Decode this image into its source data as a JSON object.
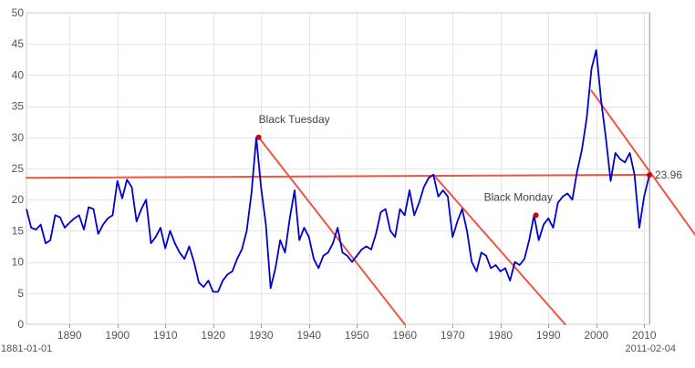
{
  "chart_data": {
    "type": "line",
    "title": "",
    "xlabel": "",
    "ylabel": "",
    "xlim": [
      1881,
      2011.1
    ],
    "ylim": [
      0,
      50
    ],
    "grid": true,
    "x_ticks": [
      1890,
      1900,
      1910,
      1920,
      1930,
      1940,
      1950,
      1960,
      1970,
      1980,
      1990,
      2000,
      2010
    ],
    "y_ticks": [
      0,
      5,
      10,
      15,
      20,
      25,
      30,
      35,
      40,
      45,
      50
    ],
    "range_start_label": "1881-01-01",
    "range_end_label": "2011-02-04",
    "series": [
      {
        "color": "#0000cc",
        "points": [
          [
            1881,
            18.5
          ],
          [
            1882,
            15.5
          ],
          [
            1883,
            15.2
          ],
          [
            1884,
            16
          ],
          [
            1885,
            13
          ],
          [
            1886,
            13.5
          ],
          [
            1887,
            17.5
          ],
          [
            1888,
            17.2
          ],
          [
            1889,
            15.5
          ],
          [
            1890,
            16.3
          ],
          [
            1891,
            17
          ],
          [
            1892,
            17.5
          ],
          [
            1893,
            15.2
          ],
          [
            1894,
            18.8
          ],
          [
            1895,
            18.5
          ],
          [
            1896,
            14.5
          ],
          [
            1897,
            16
          ],
          [
            1898,
            17
          ],
          [
            1899,
            17.5
          ],
          [
            1900,
            23
          ],
          [
            1901,
            20.2
          ],
          [
            1902,
            23.2
          ],
          [
            1903,
            22
          ],
          [
            1904,
            16.5
          ],
          [
            1905,
            18.5
          ],
          [
            1906,
            20
          ],
          [
            1907,
            13
          ],
          [
            1908,
            14
          ],
          [
            1909,
            15.5
          ],
          [
            1910,
            12.2
          ],
          [
            1911,
            15
          ],
          [
            1912,
            13
          ],
          [
            1913,
            11.5
          ],
          [
            1914,
            10.5
          ],
          [
            1915,
            12.5
          ],
          [
            1916,
            10
          ],
          [
            1917,
            6.7
          ],
          [
            1918,
            6
          ],
          [
            1919,
            7
          ],
          [
            1920,
            5.2
          ],
          [
            1921,
            5.2
          ],
          [
            1922,
            7
          ],
          [
            1923,
            8
          ],
          [
            1924,
            8.5
          ],
          [
            1925,
            10.5
          ],
          [
            1926,
            12
          ],
          [
            1927,
            15
          ],
          [
            1928,
            21
          ],
          [
            1929,
            30
          ],
          [
            1930,
            22
          ],
          [
            1931,
            16
          ],
          [
            1932,
            5.8
          ],
          [
            1933,
            9
          ],
          [
            1934,
            13.5
          ],
          [
            1935,
            11.5
          ],
          [
            1936,
            17
          ],
          [
            1937,
            21.5
          ],
          [
            1938,
            13.5
          ],
          [
            1939,
            15.5
          ],
          [
            1940,
            14
          ],
          [
            1941,
            10.5
          ],
          [
            1942,
            9
          ],
          [
            1943,
            11
          ],
          [
            1944,
            11.5
          ],
          [
            1945,
            13
          ],
          [
            1946,
            15.5
          ],
          [
            1947,
            11.5
          ],
          [
            1948,
            11
          ],
          [
            1949,
            10
          ],
          [
            1950,
            11
          ],
          [
            1951,
            12
          ],
          [
            1952,
            12.5
          ],
          [
            1953,
            12
          ],
          [
            1954,
            14.5
          ],
          [
            1955,
            18
          ],
          [
            1956,
            18.5
          ],
          [
            1957,
            15
          ],
          [
            1958,
            14
          ],
          [
            1959,
            18.5
          ],
          [
            1960,
            17.5
          ],
          [
            1961,
            21.5
          ],
          [
            1962,
            17.5
          ],
          [
            1963,
            19.5
          ],
          [
            1964,
            22
          ],
          [
            1965,
            23.5
          ],
          [
            1966,
            24
          ],
          [
            1967,
            20.5
          ],
          [
            1968,
            21.5
          ],
          [
            1969,
            20.5
          ],
          [
            1970,
            14
          ],
          [
            1971,
            16.5
          ],
          [
            1972,
            18.5
          ],
          [
            1973,
            15
          ],
          [
            1974,
            10
          ],
          [
            1975,
            8.5
          ],
          [
            1976,
            11.5
          ],
          [
            1977,
            11
          ],
          [
            1978,
            9
          ],
          [
            1979,
            9.5
          ],
          [
            1980,
            8.5
          ],
          [
            1981,
            9
          ],
          [
            1982,
            7
          ],
          [
            1983,
            10
          ],
          [
            1984,
            9.5
          ],
          [
            1985,
            10.5
          ],
          [
            1986,
            13.5
          ],
          [
            1987,
            17.5
          ],
          [
            1988,
            13.5
          ],
          [
            1989,
            16
          ],
          [
            1990,
            17
          ],
          [
            1991,
            15.5
          ],
          [
            1992,
            19.5
          ],
          [
            1993,
            20.5
          ],
          [
            1994,
            21
          ],
          [
            1995,
            20
          ],
          [
            1996,
            24.5
          ],
          [
            1997,
            28
          ],
          [
            1998,
            33
          ],
          [
            1999,
            41
          ],
          [
            2000,
            44
          ],
          [
            2001,
            36
          ],
          [
            2002,
            30
          ],
          [
            2003,
            23
          ],
          [
            2004,
            27.5
          ],
          [
            2005,
            26.5
          ],
          [
            2006,
            26
          ],
          [
            2007,
            27.5
          ],
          [
            2008,
            24
          ],
          [
            2009,
            15.5
          ],
          [
            2010,
            20.5
          ],
          [
            2011.1,
            23.96
          ]
        ]
      }
    ],
    "trend_lines": [
      {
        "color": "#ee5544",
        "from": [
          1881,
          23.5
        ],
        "to": [
          2011.1,
          24
        ]
      },
      {
        "color": "#ee5544",
        "from": [
          1929.5,
          30
        ],
        "to": [
          1960,
          0
        ]
      },
      {
        "color": "#ee5544",
        "from": [
          1966,
          24
        ],
        "to": [
          1993.5,
          0
        ]
      },
      {
        "color": "#ee5544",
        "from": [
          1999,
          37.5
        ],
        "to": [
          2021,
          14
        ]
      }
    ],
    "annotations": [
      {
        "text": "Black Tuesday",
        "x": 1929.5,
        "y": 30,
        "color": "#cc0000"
      },
      {
        "text": "Black Monday",
        "x": 1987.4,
        "y": 17.5,
        "color": "#cc0000"
      },
      {
        "text": "23.96",
        "x": 2011.1,
        "y": 23.96,
        "color": "#cc0000"
      }
    ]
  }
}
